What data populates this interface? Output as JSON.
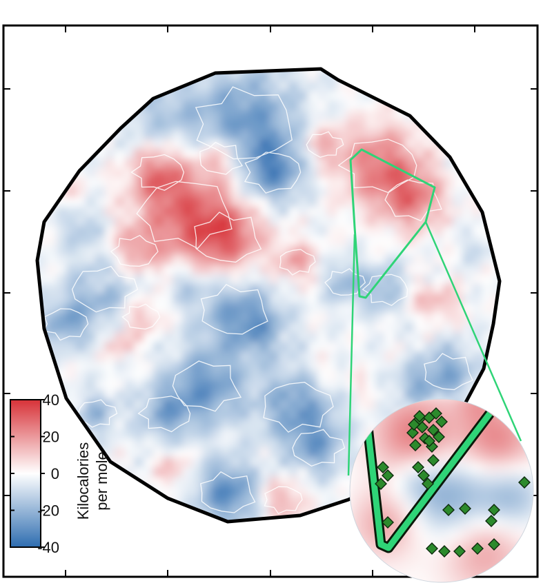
{
  "chart_data": {
    "type": "heatmap",
    "title": "",
    "xlabel": "",
    "ylabel": "",
    "grid": false,
    "colormap": {
      "low_color": "#2e6db0",
      "mid_color": "#ffffff",
      "high_color": "#d73238"
    },
    "colorbar": {
      "label_line1": "Kilocalories",
      "label_line2": "per mole",
      "range": [
        -40,
        40
      ],
      "ticks": [
        {
          "value": 40,
          "label": "40"
        },
        {
          "value": 20,
          "label": "20"
        },
        {
          "value": 0,
          "label": "0"
        },
        {
          "value": -20,
          "label": "-20"
        },
        {
          "value": -40,
          "label": "-40"
        }
      ],
      "placement": "bottom-left"
    },
    "annotations": {
      "region_outline": "black polygon",
      "highlight_outline": "green triangle",
      "inset": "magnified circular view with green diamond markers"
    },
    "colors": {
      "boundary": "#000000",
      "highlight": "#2fd477",
      "marker_fill": "#2c8a2c",
      "marker_edge": "#0d2a0d"
    }
  }
}
